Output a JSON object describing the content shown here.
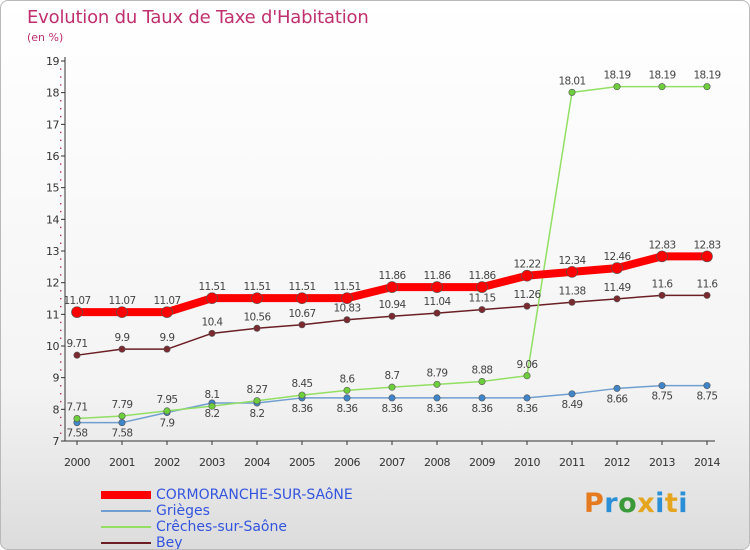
{
  "title": "Evolution du Taux de Taxe d'Habitation",
  "subtitle": "(en %)",
  "logo": {
    "text": "Proxiti",
    "letter_colors": [
      "#e57a1f",
      "#2a8fd6",
      "#3a9a3a",
      "#e5a51f",
      "#2a8fd6",
      "#e5a51f",
      "#2a8fd6"
    ]
  },
  "chart_data": {
    "type": "line",
    "title": "Evolution du Taux de Taxe d'Habitation",
    "ylabel": "(en %)",
    "xlabel": "",
    "x": [
      "2000",
      "2001",
      "2002",
      "2003",
      "2004",
      "2005",
      "2006",
      "2007",
      "2008",
      "2009",
      "2010",
      "2011",
      "2012",
      "2013",
      "2014"
    ],
    "ylim": [
      7,
      19
    ],
    "yticks": [
      "7",
      "8",
      "9",
      "10",
      "11",
      "12",
      "13",
      "14",
      "15",
      "16",
      "17",
      "18",
      "19"
    ],
    "grid": false,
    "legend_position": "bottom-left",
    "series": [
      {
        "name": "Bey",
        "color": "#6b1f24",
        "dot_color": "#7a2a2e",
        "line_width": 1.5,
        "dot_radius": 3.2,
        "labels_below": false,
        "values": [
          9.71,
          9.9,
          9.9,
          10.4,
          10.56,
          10.67,
          10.83,
          10.94,
          11.04,
          11.15,
          11.26,
          11.38,
          11.49,
          11.6,
          11.6
        ],
        "value_labels": [
          "9.71",
          "9.9",
          "9.9",
          "10.4",
          "10.56",
          "10.67",
          "10.83",
          "10.94",
          "11.04",
          "11.15",
          "11.26",
          "11.38",
          "11.49",
          "11.6",
          "11.6"
        ]
      },
      {
        "name": "Grièges",
        "color": "#6f9fd0",
        "dot_color": "#3f85c9",
        "line_width": 1.5,
        "dot_radius": 3.2,
        "labels_below": true,
        "values": [
          7.58,
          7.58,
          7.9,
          8.2,
          8.2,
          8.36,
          8.36,
          8.36,
          8.36,
          8.36,
          8.36,
          8.49,
          8.66,
          8.75,
          8.75
        ],
        "value_labels": [
          "7.58",
          "7.58",
          "7.9",
          "8.2",
          "8.2",
          "8.36",
          "8.36",
          "8.36",
          "8.36",
          "8.36",
          "8.36",
          "8.49",
          "8.66",
          "8.75",
          "8.75"
        ]
      },
      {
        "name": "Crêches-sur-Saône",
        "color": "#92df64",
        "dot_color": "#6ecf3c",
        "line_width": 1.5,
        "dot_radius": 3.2,
        "labels_below": false,
        "values": [
          7.71,
          7.79,
          7.95,
          8.1,
          8.27,
          8.45,
          8.6,
          8.7,
          8.79,
          8.88,
          9.06,
          18.01,
          18.19,
          18.19,
          18.19
        ],
        "value_labels": [
          "7.71",
          "7.79",
          "7.95",
          "8.1",
          "8.27",
          "8.45",
          "8.6",
          "8.7",
          "8.79",
          "8.88",
          "9.06",
          "18.01",
          "18.19",
          "18.19",
          "18.19"
        ]
      },
      {
        "name": "CORMORANCHE-SUR-SAôNE",
        "color": "#ff0000",
        "dot_color": "#ff0000",
        "line_width": 8,
        "dot_radius": 5.5,
        "labels_below": false,
        "values": [
          11.07,
          11.07,
          11.07,
          11.51,
          11.51,
          11.51,
          11.51,
          11.86,
          11.86,
          11.86,
          12.22,
          12.34,
          12.46,
          12.83,
          12.83
        ],
        "value_labels": [
          "11.07",
          "11.07",
          "11.07",
          "11.51",
          "11.51",
          "11.51",
          "11.51",
          "11.86",
          "11.86",
          "11.86",
          "12.22",
          "12.34",
          "12.46",
          "12.83",
          "12.83"
        ]
      }
    ],
    "legend_order": [
      "CORMORANCHE-SUR-SAôNE",
      "Grièges",
      "Crêches-sur-Saône",
      "Bey"
    ]
  }
}
